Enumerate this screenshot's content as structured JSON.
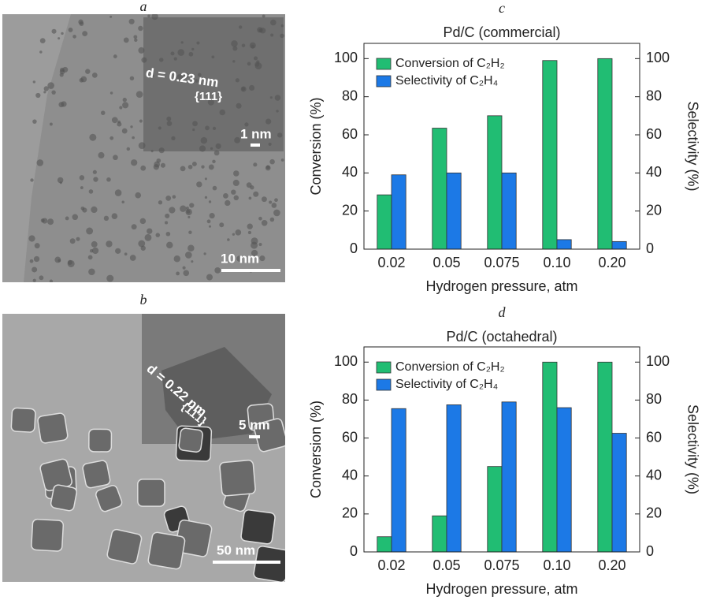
{
  "images": [
    {
      "label": "a",
      "annotations": [
        "d = 0.23 nm",
        "{111}",
        "1 nm",
        "10 nm"
      ]
    },
    {
      "label": "b",
      "annotations": [
        "d = 0.22 nm",
        "{11̄1}",
        "5 nm",
        "50 nm"
      ]
    }
  ],
  "chart_data": [
    {
      "type": "bar",
      "label": "c",
      "title": "Pd/C (commercial)",
      "x_label": "Hydrogen pressure, atm",
      "y_label": "Conversion (%)",
      "y2_label": "Selectivity (%)",
      "categories": [
        "0.02",
        "0.05",
        "0.075",
        "0.10",
        "0.20"
      ],
      "series": [
        {
          "name": "Conversion of C₂H₂",
          "color": "#21bd73",
          "values": [
            28.5,
            63.5,
            70,
            99,
            100
          ]
        },
        {
          "name": "Selectivity of C₂H₄",
          "color": "#1c79e6",
          "axis": "y2",
          "values": [
            39,
            40,
            40,
            5,
            4
          ]
        }
      ],
      "ylim": [
        0,
        108
      ],
      "yticks": [
        0,
        20,
        40,
        60,
        80,
        100
      ],
      "y2lim": [
        0,
        108
      ],
      "y2ticks": [
        0,
        20,
        40,
        60,
        80,
        100
      ],
      "legend": "upper left"
    },
    {
      "type": "bar",
      "label": "d",
      "title": "Pd/C (octahedral)",
      "x_label": "Hydrogen pressure, atm",
      "y_label": "Conversion (%)",
      "y2_label": "Selectivity (%)",
      "categories": [
        "0.02",
        "0.05",
        "0.075",
        "0.10",
        "0.20"
      ],
      "series": [
        {
          "name": "Conversion of C₂H₂",
          "color": "#21bd73",
          "values": [
            8,
            19,
            45,
            100,
            100
          ]
        },
        {
          "name": "Selectivity of C₂H₄",
          "color": "#1c79e6",
          "axis": "y2",
          "values": [
            75.5,
            77.5,
            79,
            76,
            62.5
          ]
        }
      ],
      "ylim": [
        0,
        108
      ],
      "yticks": [
        0,
        20,
        40,
        60,
        80,
        100
      ],
      "y2lim": [
        0,
        108
      ],
      "y2ticks": [
        0,
        20,
        40,
        60,
        80,
        100
      ],
      "legend": "upper left"
    }
  ]
}
